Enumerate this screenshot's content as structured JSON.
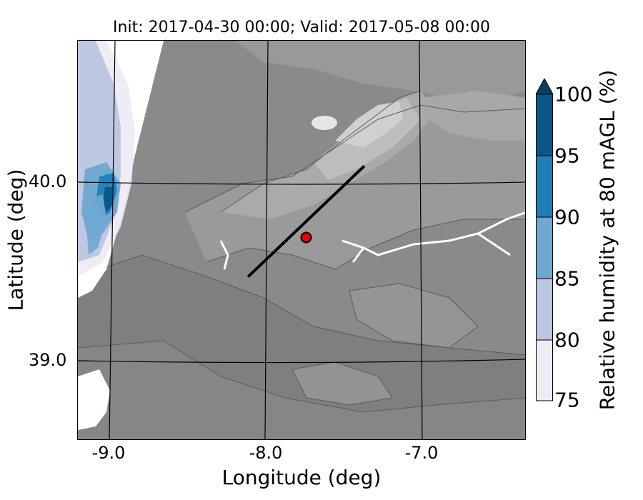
{
  "title": "Init: 2017-04-30 00:00; Valid: 2017-05-08 00:00",
  "map": {
    "xlabel": "Longitude (deg)",
    "ylabel": "Latitude (deg)",
    "lon_ticks": [
      "-9.0",
      "-8.0",
      "-7.0"
    ],
    "lat_ticks": [
      "40.0",
      "39.0"
    ],
    "terrain_colors": [
      "#7f7f7f",
      "#8c8c8c",
      "#9a9a9a",
      "#aaaaaa",
      "#bdbdbd",
      "#d0d0d0",
      "#e6e6e6"
    ],
    "transect": {
      "start_lon": -8.13,
      "start_lat": 39.47,
      "end_lon": -7.37,
      "end_lat": 40.09
    },
    "marker": {
      "lon": -7.75,
      "lat": 39.69,
      "color": "#e00000"
    }
  },
  "colorbar": {
    "label": "Relative humidity at 80 mAGL (%)",
    "ticks": [
      "100",
      "95",
      "90",
      "85",
      "80",
      "75"
    ],
    "levels": [
      {
        "range": "75-80",
        "color": "#efebf4"
      },
      {
        "range": "80-85",
        "color": "#bcc6e0"
      },
      {
        "range": "85-90",
        "color": "#6fa8d0"
      },
      {
        "range": "90-95",
        "color": "#1f7fb8"
      },
      {
        "range": "95-100",
        "color": "#0a5685"
      },
      {
        "range": ">100",
        "color": "#0a3d5e"
      }
    ]
  }
}
